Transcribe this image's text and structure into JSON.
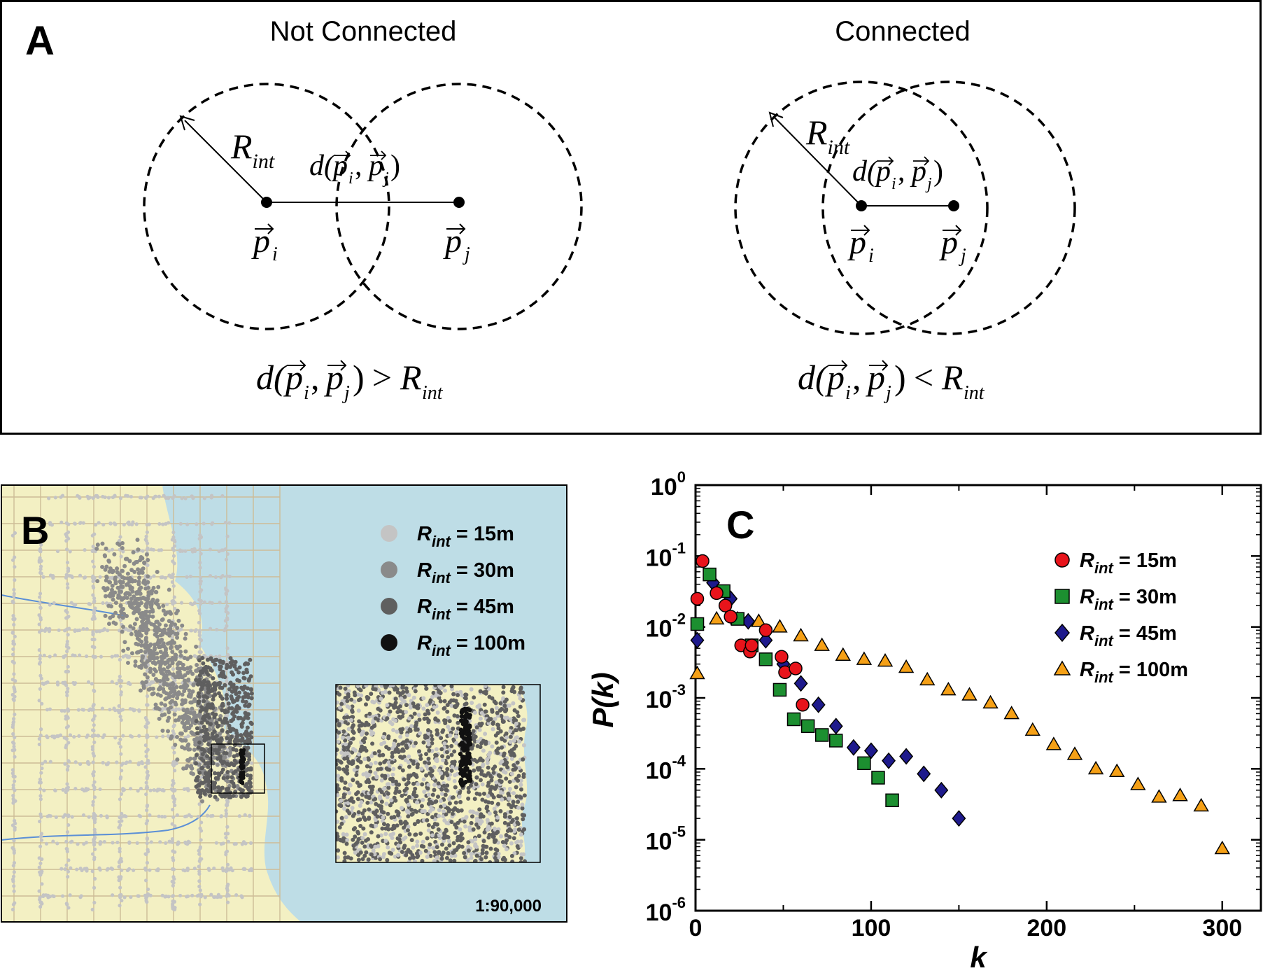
{
  "panel_a": {
    "label": "A",
    "left_title": "Not Connected",
    "right_title": "Connected",
    "radius_symbol": "R",
    "radius_subscript": "int",
    "point_i": "p",
    "point_i_sub": "i",
    "point_j": "p",
    "point_j_sub": "j",
    "distance_label": "d(p, p)",
    "left_condition": "d(p, p) > R",
    "left_condition_op": ">",
    "right_condition_op": "<",
    "condition_sub": "int"
  },
  "panel_b": {
    "label": "B",
    "scale": "1:90,000",
    "legend": [
      {
        "symbol": "R",
        "sub": "int",
        "text": "= 15m",
        "color": "#c4c4c4"
      },
      {
        "symbol": "R",
        "sub": "int",
        "text": "= 30m",
        "color": "#8a8a8a"
      },
      {
        "symbol": "R",
        "sub": "int",
        "text": "= 45m",
        "color": "#5f5f5f"
      },
      {
        "symbol": "R",
        "sub": "int",
        "text": "= 100m",
        "color": "#111111"
      }
    ],
    "colors": {
      "water": "#bedde6",
      "land": "#f3f0c3"
    }
  },
  "panel_c": {
    "label": "C",
    "xlabel": "k",
    "ylabel": "P(k)",
    "legend": [
      {
        "symbol": "R",
        "sub": "int",
        "text": "= 15m"
      },
      {
        "symbol": "R",
        "sub": "int",
        "text": "= 30m"
      },
      {
        "symbol": "R",
        "sub": "int",
        "text": "= 45m"
      },
      {
        "symbol": "R",
        "sub": "int",
        "text": "= 100m"
      }
    ],
    "x_ticks": [
      "0",
      "100",
      "200",
      "300"
    ],
    "y_ticks": [
      {
        "base": "10",
        "exp": "0"
      },
      {
        "base": "10",
        "exp": "-1"
      },
      {
        "base": "10",
        "exp": "-2"
      },
      {
        "base": "10",
        "exp": "-3"
      },
      {
        "base": "10",
        "exp": "-4"
      },
      {
        "base": "10",
        "exp": "-5"
      },
      {
        "base": "10",
        "exp": "-6"
      }
    ]
  },
  "chart_data": {
    "type": "scatter",
    "title": "",
    "xlabel": "k",
    "ylabel": "P(k)",
    "xlim": [
      0,
      322
    ],
    "ylim": [
      1e-06,
      1
    ],
    "yscale": "log",
    "grid": false,
    "legend_position": "top-right",
    "series": [
      {
        "name": "Rint = 15m",
        "marker": "circle",
        "color": "#e8141b",
        "points": [
          [
            1,
            0.025
          ],
          [
            4,
            0.085
          ],
          [
            12,
            0.03
          ],
          [
            17,
            0.02
          ],
          [
            20,
            0.014
          ],
          [
            26,
            0.0055
          ],
          [
            31,
            0.0045
          ],
          [
            32,
            0.0055
          ],
          [
            40,
            0.009
          ],
          [
            49,
            0.0038
          ],
          [
            51,
            0.0023
          ],
          [
            57,
            0.0026
          ],
          [
            61,
            0.0008
          ]
        ]
      },
      {
        "name": "Rint = 30m",
        "marker": "square",
        "color": "#1c8f30",
        "points": [
          [
            1,
            0.011
          ],
          [
            8,
            0.055
          ],
          [
            16,
            0.032
          ],
          [
            24,
            0.013
          ],
          [
            32,
            0.0055
          ],
          [
            40,
            0.0035
          ],
          [
            48,
            0.0013
          ],
          [
            56,
            0.0005
          ],
          [
            64,
            0.0004
          ],
          [
            72,
            0.0003
          ],
          [
            80,
            0.00025
          ],
          [
            96,
            0.00012
          ],
          [
            104,
            7.5e-05
          ],
          [
            112,
            3.6e-05
          ]
        ]
      },
      {
        "name": "Rint = 45m",
        "marker": "diamond",
        "color": "#1e1a8c",
        "points": [
          [
            1,
            0.0065
          ],
          [
            10,
            0.042
          ],
          [
            20,
            0.025
          ],
          [
            30,
            0.012
          ],
          [
            40,
            0.0065
          ],
          [
            50,
            0.003
          ],
          [
            60,
            0.0016
          ],
          [
            70,
            0.0008
          ],
          [
            80,
            0.0004
          ],
          [
            90,
            0.0002
          ],
          [
            100,
            0.00018
          ],
          [
            110,
            0.00013
          ],
          [
            120,
            0.00015
          ],
          [
            130,
            8.5e-05
          ],
          [
            140,
            5e-05
          ],
          [
            150,
            2e-05
          ]
        ]
      },
      {
        "name": "Rint = 100m",
        "marker": "triangle",
        "color": "#f5a016",
        "points": [
          [
            1,
            0.0022
          ],
          [
            12,
            0.013
          ],
          [
            24,
            0.013
          ],
          [
            36,
            0.012
          ],
          [
            48,
            0.01
          ],
          [
            60,
            0.0075
          ],
          [
            72,
            0.0055
          ],
          [
            84,
            0.004
          ],
          [
            96,
            0.0035
          ],
          [
            108,
            0.0033
          ],
          [
            120,
            0.0027
          ],
          [
            132,
            0.0018
          ],
          [
            144,
            0.0013
          ],
          [
            156,
            0.0011
          ],
          [
            168,
            0.00085
          ],
          [
            180,
            0.0006
          ],
          [
            192,
            0.00035
          ],
          [
            204,
            0.00022
          ],
          [
            216,
            0.00016
          ],
          [
            228,
            0.0001
          ],
          [
            240,
            9.2e-05
          ],
          [
            252,
            6e-05
          ],
          [
            264,
            4e-05
          ],
          [
            276,
            4.2e-05
          ],
          [
            288,
            3e-05
          ],
          [
            300,
            7.5e-06
          ]
        ]
      }
    ]
  }
}
